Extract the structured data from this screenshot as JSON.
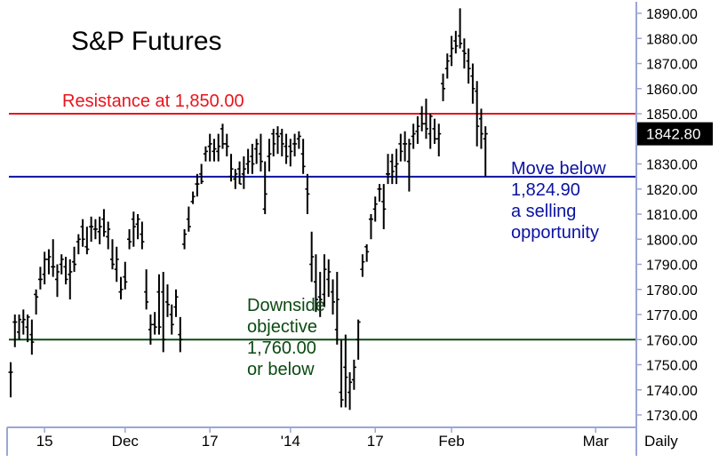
{
  "chart_data": {
    "type": "ohlc",
    "title": "S&P Futures",
    "period_label": "Daily",
    "last_price_label": "1842.80",
    "ylim": [
      1727,
      1897
    ],
    "y_ticks": [
      1730,
      1740,
      1750,
      1760,
      1770,
      1780,
      1790,
      1800,
      1810,
      1820,
      1830,
      1840,
      1850,
      1860,
      1870,
      1880,
      1890
    ],
    "y_tick_labels": [
      "1730.00",
      "1740.00",
      "1750.00",
      "1760.00",
      "1770.00",
      "1780.00",
      "1790.00",
      "1800.00",
      "1810.00",
      "1820.00",
      "1830.00",
      "1840.00",
      "1850.00",
      "1860.00",
      "1870.00",
      "1880.00",
      "1890.00"
    ],
    "x_labels": [
      {
        "label": "15",
        "bar": 8
      },
      {
        "label": "Dec",
        "bar": 27
      },
      {
        "label": "17",
        "bar": 47
      },
      {
        "label": "'14",
        "bar": 66
      },
      {
        "label": "17",
        "bar": 86
      },
      {
        "label": "Feb",
        "bar": 104
      },
      {
        "label": "Mar",
        "bar": 138
      }
    ],
    "levels": [
      {
        "value": 1850.0,
        "color": "#e8141c",
        "label": "Resistance at 1,850.00"
      },
      {
        "value": 1824.9,
        "color": "#0a12a0",
        "label": ""
      },
      {
        "value": 1760.0,
        "color": "#0b4a12",
        "label": ""
      }
    ],
    "annotations": [
      {
        "color": "#0a12a0",
        "lines": [
          "Move below",
          "1,824.90",
          "a selling",
          "opportunity"
        ]
      },
      {
        "color": "#0b4a12",
        "lines": [
          "Downside",
          "objective",
          "1,760.00",
          "or below"
        ]
      }
    ],
    "colors": {
      "bars": "#000000",
      "axis": "#9aa6d8",
      "label_box": "#000000",
      "label_text": "#ffffff",
      "text": "#000000"
    },
    "ohlc": [
      [
        1747,
        1751,
        1737,
        1747
      ],
      [
        1767,
        1770,
        1757,
        1767
      ],
      [
        1763,
        1770,
        1760,
        1768
      ],
      [
        1767,
        1772,
        1762,
        1768
      ],
      [
        1765,
        1770,
        1759,
        1769
      ],
      [
        1762,
        1768,
        1754,
        1759
      ],
      [
        1778,
        1780,
        1770,
        1777
      ],
      [
        1784,
        1789,
        1780,
        1784
      ],
      [
        1786,
        1795,
        1782,
        1792
      ],
      [
        1792,
        1796,
        1786,
        1793
      ],
      [
        1789,
        1800,
        1785,
        1789
      ],
      [
        1784,
        1790,
        1777,
        1787
      ],
      [
        1790,
        1794,
        1786,
        1792
      ],
      [
        1789,
        1793,
        1782,
        1784
      ],
      [
        1786,
        1792,
        1776,
        1787
      ],
      [
        1791,
        1797,
        1787,
        1790
      ],
      [
        1799,
        1802,
        1794,
        1800
      ],
      [
        1805,
        1808,
        1797,
        1800
      ],
      [
        1797,
        1805,
        1794,
        1796
      ],
      [
        1805,
        1809,
        1799,
        1805
      ],
      [
        1804,
        1808,
        1800,
        1804
      ],
      [
        1803,
        1809,
        1798,
        1805
      ],
      [
        1808,
        1812,
        1801,
        1803
      ],
      [
        1801,
        1807,
        1796,
        1804
      ],
      [
        1792,
        1800,
        1788,
        1790
      ],
      [
        1788,
        1797,
        1783,
        1792
      ],
      [
        1779,
        1785,
        1776,
        1780
      ],
      [
        1785,
        1791,
        1780,
        1783
      ],
      [
        1800,
        1804,
        1796,
        1799
      ],
      [
        1808,
        1811,
        1797,
        1805
      ],
      [
        1806,
        1810,
        1800,
        1808
      ],
      [
        1802,
        1807,
        1796,
        1799
      ],
      [
        1779,
        1788,
        1772,
        1775
      ],
      [
        1764,
        1770,
        1758,
        1766
      ],
      [
        1766,
        1771,
        1762,
        1765
      ],
      [
        1779,
        1786,
        1762,
        1765
      ],
      [
        1779,
        1787,
        1755,
        1760
      ],
      [
        1775,
        1782,
        1769,
        1774
      ],
      [
        1770,
        1774,
        1762,
        1766
      ],
      [
        1773,
        1780,
        1769,
        1777
      ],
      [
        1762,
        1769,
        1755,
        1760
      ],
      [
        1798,
        1804,
        1796,
        1802
      ],
      [
        1808,
        1813,
        1803,
        1805
      ],
      [
        1815,
        1819,
        1814,
        1817
      ],
      [
        1822,
        1826,
        1817,
        1822
      ],
      [
        1826,
        1830,
        1822,
        1823
      ],
      [
        1834,
        1837,
        1831,
        1835
      ],
      [
        1837,
        1842,
        1831,
        1838
      ],
      [
        1835,
        1840,
        1831,
        1836
      ],
      [
        1835,
        1842,
        1831,
        1837
      ],
      [
        1844,
        1846,
        1836,
        1838
      ],
      [
        1838,
        1842,
        1833,
        1837
      ],
      [
        1825,
        1834,
        1823,
        1828
      ],
      [
        1824,
        1828,
        1820,
        1826
      ],
      [
        1828,
        1831,
        1822,
        1822
      ],
      [
        1826,
        1833,
        1820,
        1828
      ],
      [
        1830,
        1836,
        1826,
        1831
      ],
      [
        1833,
        1838,
        1826,
        1830
      ],
      [
        1836,
        1840,
        1830,
        1838
      ],
      [
        1834,
        1842,
        1827,
        1831
      ],
      [
        1812,
        1831,
        1810,
        1818
      ],
      [
        1833,
        1840,
        1827,
        1834
      ],
      [
        1842,
        1844,
        1833,
        1838
      ],
      [
        1842,
        1845,
        1834,
        1841
      ],
      [
        1842,
        1844,
        1833,
        1838
      ],
      [
        1837,
        1842,
        1830,
        1833
      ],
      [
        1837,
        1840,
        1829,
        1835
      ],
      [
        1838,
        1842,
        1833,
        1838
      ],
      [
        1840,
        1843,
        1836,
        1841
      ],
      [
        1834,
        1840,
        1826,
        1829
      ],
      [
        1820,
        1826,
        1810,
        1818
      ],
      [
        1790,
        1803,
        1783,
        1793
      ],
      [
        1783,
        1794,
        1771,
        1776
      ],
      [
        1777,
        1787,
        1769,
        1776
      ],
      [
        1778,
        1794,
        1773,
        1788
      ],
      [
        1784,
        1792,
        1777,
        1787
      ],
      [
        1779,
        1784,
        1770,
        1775
      ],
      [
        1764,
        1787,
        1758,
        1776
      ],
      [
        1739,
        1760,
        1733,
        1736
      ],
      [
        1749,
        1762,
        1733,
        1745
      ],
      [
        1739,
        1747,
        1732,
        1743
      ],
      [
        1744,
        1752,
        1740,
        1749
      ],
      [
        1760,
        1768,
        1752,
        1767
      ],
      [
        1788,
        1794,
        1785,
        1791
      ],
      [
        1797,
        1798,
        1791,
        1795
      ],
      [
        1808,
        1810,
        1800,
        1808
      ],
      [
        1812,
        1817,
        1807,
        1814
      ],
      [
        1820,
        1822,
        1815,
        1820
      ],
      [
        1815,
        1822,
        1804,
        1812
      ],
      [
        1826,
        1834,
        1822,
        1826
      ],
      [
        1831,
        1834,
        1822,
        1827
      ],
      [
        1829,
        1836,
        1822,
        1830
      ],
      [
        1838,
        1842,
        1831,
        1835
      ],
      [
        1838,
        1843,
        1831,
        1838
      ],
      [
        1831,
        1840,
        1819,
        1838
      ],
      [
        1841,
        1846,
        1836,
        1842
      ],
      [
        1843,
        1849,
        1838,
        1845
      ],
      [
        1850,
        1853,
        1843,
        1846
      ],
      [
        1846,
        1856,
        1840,
        1844
      ],
      [
        1842,
        1850,
        1836,
        1849
      ],
      [
        1844,
        1848,
        1838,
        1840
      ],
      [
        1840,
        1846,
        1833,
        1842
      ],
      [
        1862,
        1866,
        1855,
        1860
      ],
      [
        1868,
        1874,
        1864,
        1871
      ],
      [
        1873,
        1881,
        1869,
        1876
      ],
      [
        1879,
        1883,
        1874,
        1877
      ],
      [
        1881,
        1892,
        1876,
        1878
      ],
      [
        1875,
        1880,
        1868,
        1874
      ],
      [
        1871,
        1876,
        1862,
        1868
      ],
      [
        1865,
        1870,
        1854,
        1860
      ],
      [
        1859,
        1863,
        1837,
        1845
      ],
      [
        1848,
        1852,
        1836,
        1842
      ],
      [
        1840,
        1845,
        1825,
        1842
      ]
    ]
  }
}
